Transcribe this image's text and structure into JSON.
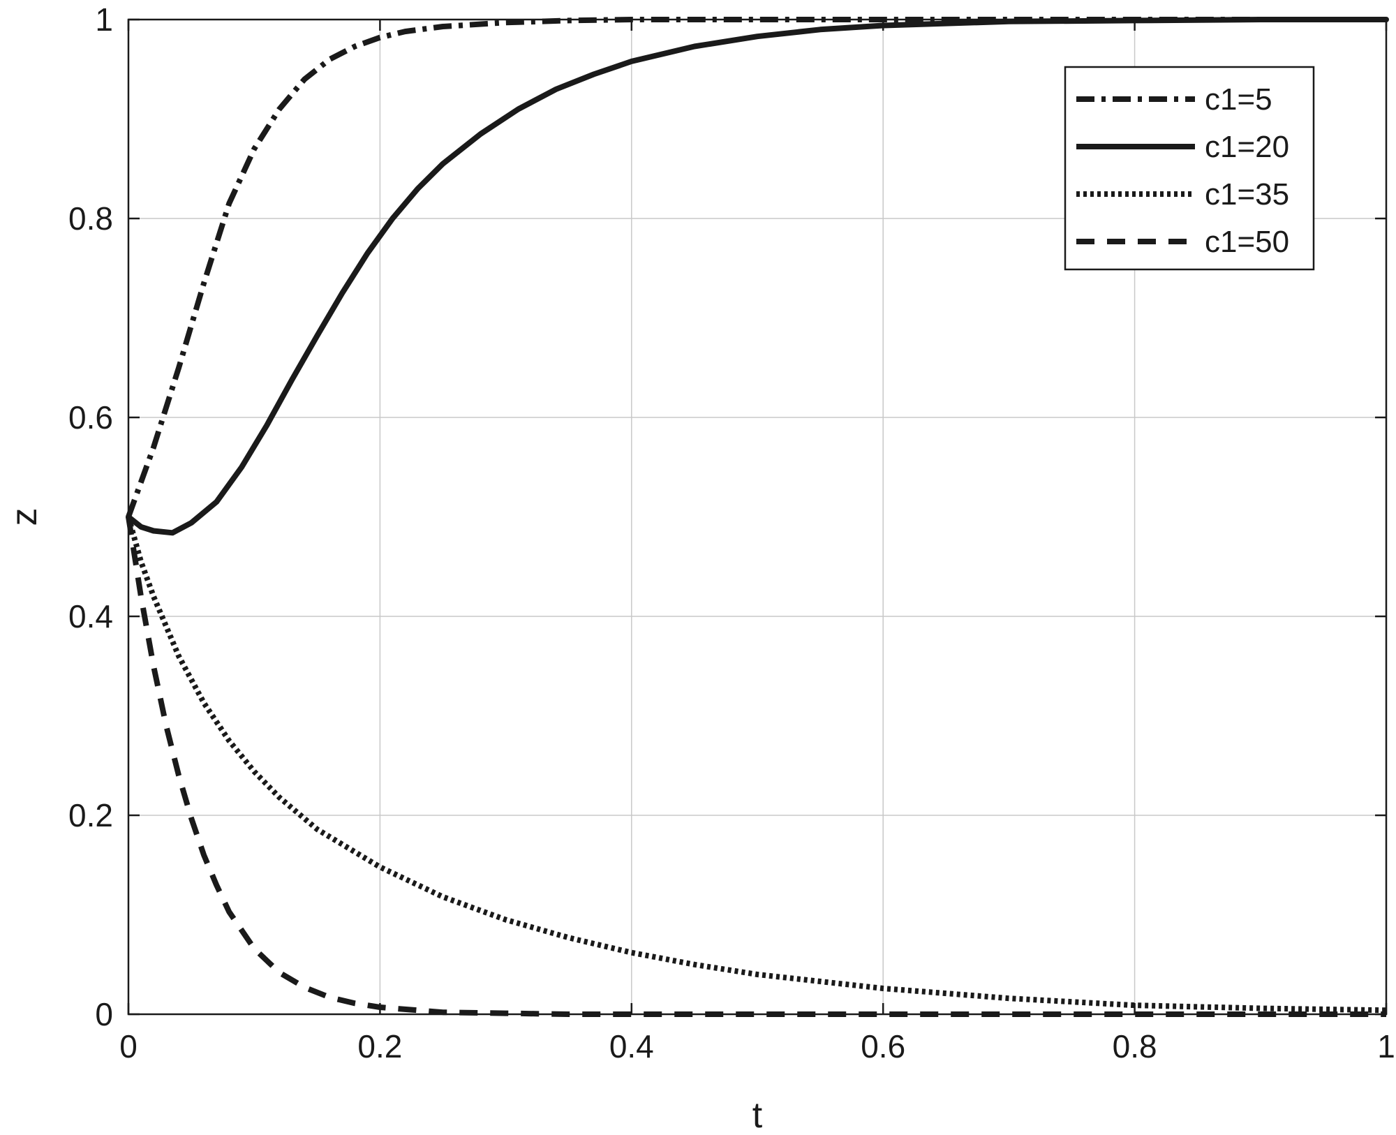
{
  "chart_data": {
    "type": "line",
    "title": "",
    "xlabel": "t",
    "ylabel": "z",
    "xlim": [
      0,
      1
    ],
    "ylim": [
      0,
      1
    ],
    "xticks": [
      0,
      0.2,
      0.4,
      0.6,
      0.8,
      1
    ],
    "xtick_labels": [
      "0",
      "0.2",
      "0.4",
      "0.6",
      "0.8",
      "1"
    ],
    "yticks": [
      0,
      0.2,
      0.4,
      0.6,
      0.8,
      1
    ],
    "ytick_labels": [
      "0",
      "0.2",
      "0.4",
      "0.6",
      "0.8",
      "1"
    ],
    "grid": true,
    "legend_position": "top-right",
    "line_color": "#1a1a1a",
    "grid_color": "#c8c8c8",
    "series": [
      {
        "name": "c1=5",
        "style": "dashdot",
        "x": [
          0,
          0.02,
          0.04,
          0.06,
          0.08,
          0.1,
          0.12,
          0.14,
          0.16,
          0.18,
          0.2,
          0.22,
          0.25,
          0.3,
          0.35,
          0.4,
          0.5,
          0.6,
          0.7,
          0.8,
          0.9,
          1.0
        ],
        "y": [
          0.5,
          0.57,
          0.65,
          0.735,
          0.815,
          0.87,
          0.91,
          0.94,
          0.96,
          0.973,
          0.982,
          0.988,
          0.993,
          0.997,
          0.999,
          1.0,
          1.0,
          1.0,
          1.0,
          1.0,
          1.0,
          1.0
        ]
      },
      {
        "name": "c1=20",
        "style": "solid",
        "x": [
          0,
          0.01,
          0.02,
          0.035,
          0.05,
          0.07,
          0.09,
          0.11,
          0.13,
          0.15,
          0.17,
          0.19,
          0.21,
          0.23,
          0.25,
          0.28,
          0.31,
          0.34,
          0.37,
          0.4,
          0.45,
          0.5,
          0.55,
          0.6,
          0.7,
          0.8,
          0.9,
          1.0
        ],
        "y": [
          0.5,
          0.49,
          0.486,
          0.484,
          0.494,
          0.515,
          0.55,
          0.592,
          0.638,
          0.682,
          0.725,
          0.765,
          0.8,
          0.83,
          0.855,
          0.885,
          0.91,
          0.93,
          0.945,
          0.958,
          0.973,
          0.983,
          0.99,
          0.994,
          0.998,
          0.999,
          1.0,
          1.0
        ]
      },
      {
        "name": "c1=35",
        "style": "dotted",
        "x": [
          0,
          0.01,
          0.02,
          0.04,
          0.06,
          0.08,
          0.1,
          0.12,
          0.15,
          0.2,
          0.25,
          0.3,
          0.35,
          0.4,
          0.45,
          0.5,
          0.6,
          0.7,
          0.8,
          0.9,
          1.0
        ],
        "y": [
          0.5,
          0.455,
          0.42,
          0.36,
          0.313,
          0.275,
          0.244,
          0.218,
          0.186,
          0.148,
          0.118,
          0.095,
          0.077,
          0.062,
          0.05,
          0.04,
          0.026,
          0.016,
          0.009,
          0.006,
          0.004
        ]
      },
      {
        "name": "c1=50",
        "style": "dashed",
        "x": [
          0,
          0.01,
          0.02,
          0.03,
          0.04,
          0.05,
          0.06,
          0.07,
          0.08,
          0.1,
          0.12,
          0.14,
          0.16,
          0.18,
          0.2,
          0.25,
          0.3,
          0.35,
          0.4,
          0.5,
          0.6,
          0.7,
          0.8,
          0.9,
          1.0
        ],
        "y": [
          0.5,
          0.42,
          0.35,
          0.29,
          0.24,
          0.197,
          0.16,
          0.13,
          0.103,
          0.066,
          0.042,
          0.027,
          0.017,
          0.011,
          0.007,
          0.002,
          0.001,
          0.0,
          0.0,
          0.0,
          0.0,
          0.0,
          0.0,
          0.0,
          0.0
        ]
      }
    ]
  }
}
